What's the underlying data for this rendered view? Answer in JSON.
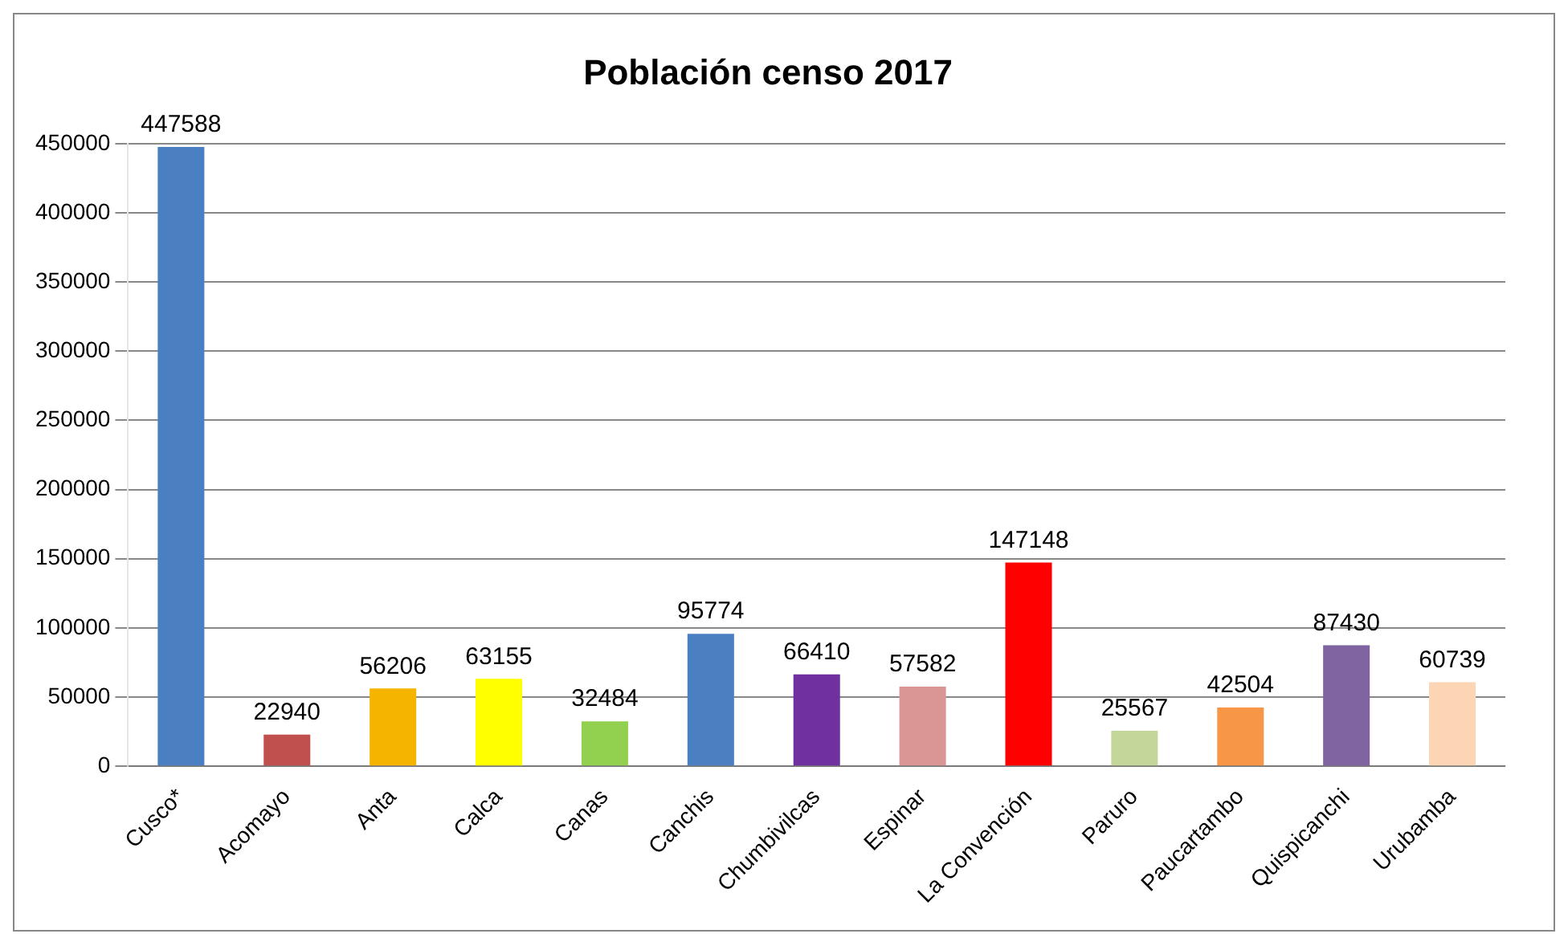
{
  "chart_data": {
    "type": "bar",
    "title": "Población censo 2017",
    "categories": [
      "Cusco*",
      "Acomayo",
      "Anta",
      "Calca",
      "Canas",
      "Canchis",
      "Chumbivilcas",
      "Espinar",
      "La Convención",
      "Paruro",
      "Paucartambo",
      "Quispicanchi",
      "Urubamba"
    ],
    "values": [
      447588,
      22940,
      56206,
      63155,
      32484,
      95774,
      66410,
      57582,
      147148,
      25567,
      42504,
      87430,
      60739
    ],
    "colors": [
      "#4a7fc1",
      "#c0504d",
      "#f5b400",
      "#ffff00",
      "#92d050",
      "#4a7fc1",
      "#7030a0",
      "#d99694",
      "#ff0000",
      "#c4d79b",
      "#f79646",
      "#8064a2",
      "#fcd5b4"
    ],
    "ylim": [
      0,
      450000
    ],
    "yticks": [
      0,
      50000,
      100000,
      150000,
      200000,
      250000,
      300000,
      350000,
      400000,
      450000
    ],
    "grid": "y",
    "data_labels": true,
    "legend": false
  }
}
